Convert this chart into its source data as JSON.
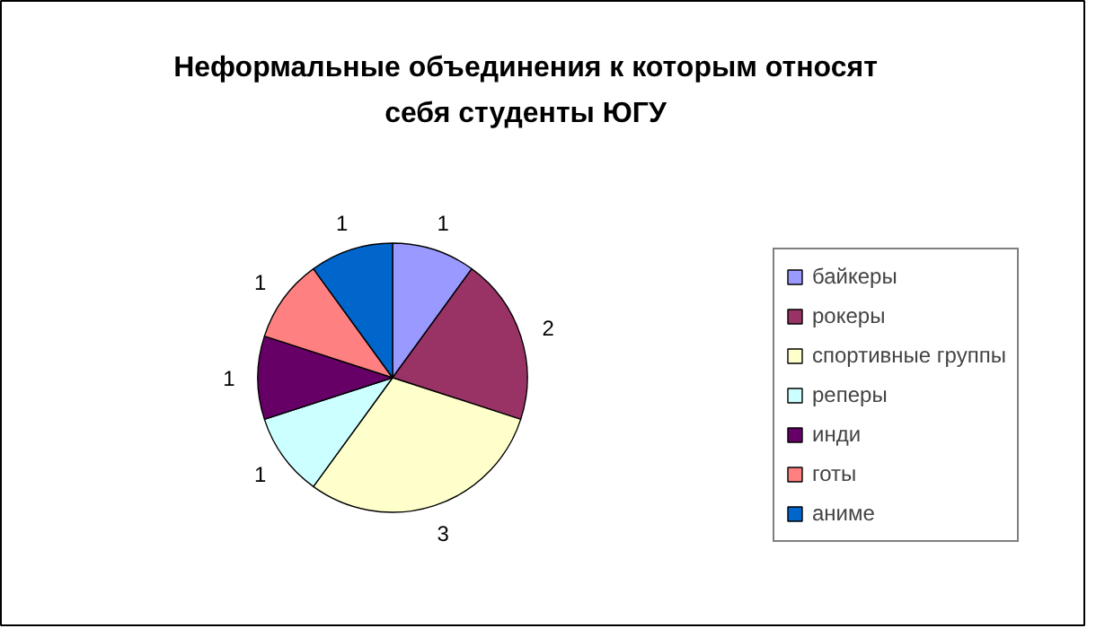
{
  "chart_data": {
    "type": "pie",
    "title": "Неформальные объединения к которым относят\nсебя студенты ЮГУ",
    "categories": [
      "байкеры",
      "рокеры",
      "спортивные группы",
      "реперы",
      "инди",
      "готы",
      "аниме"
    ],
    "values": [
      1,
      2,
      3,
      1,
      1,
      1,
      1
    ],
    "colors": [
      "#9999ff",
      "#993366",
      "#ffffcc",
      "#ccffff",
      "#660066",
      "#ff8080",
      "#0066cc"
    ],
    "data_labels": true,
    "legend": "right"
  }
}
